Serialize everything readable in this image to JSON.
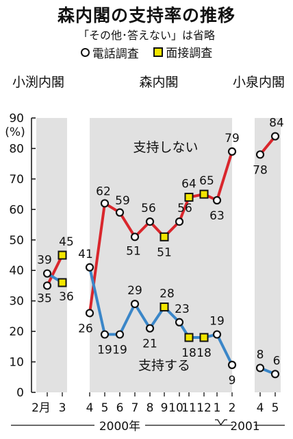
{
  "title": "森内閣の支持率の推移",
  "subtitle": "「その他･答えない」は省略",
  "legend": {
    "phone": "電話調査",
    "face": "面接調査"
  },
  "colors": {
    "support_not": "#d9262c",
    "support": "#3a86c8",
    "band": "#e1e1e1",
    "face_marker": "#f3e600"
  },
  "chart_data": {
    "type": "line",
    "title": "森内閣の支持率の推移",
    "subtitle": "「その他･答えない」は省略",
    "ylabel": "(%)",
    "ylim": [
      0,
      90
    ],
    "yticks": [
      0,
      10,
      20,
      30,
      40,
      50,
      60,
      70,
      80,
      90
    ],
    "eras": [
      {
        "label": "小渕内閣",
        "months": [
          0,
          1
        ]
      },
      {
        "label": "森内閣",
        "months": [
          2,
          14
        ]
      },
      {
        "label": "小泉内閣",
        "months": [
          15,
          16
        ]
      }
    ],
    "months": [
      "2月",
      "3",
      "4",
      "5",
      "6",
      "7",
      "8",
      "9",
      "10",
      "11",
      "12",
      "1",
      "2",
      "4",
      "5"
    ],
    "years": [
      "2000年",
      "2001"
    ],
    "series": [
      {
        "name": "支持しない",
        "segments": [
          [
            {
              "m": 0,
              "v": 35,
              "t": "phone"
            },
            {
              "m": 1,
              "v": 45,
              "t": "face"
            }
          ],
          [
            {
              "m": 2,
              "v": 26,
              "t": "phone"
            },
            {
              "m": 3,
              "v": 62,
              "t": "phone"
            },
            {
              "m": 4,
              "v": 59,
              "t": "phone"
            },
            {
              "m": 5,
              "v": 51,
              "t": "phone"
            },
            {
              "m": 6,
              "v": 56,
              "t": "phone"
            },
            {
              "m": 7,
              "v": 51,
              "t": "face"
            },
            {
              "m": 8,
              "v": 56,
              "t": "phone"
            },
            {
              "m": 9,
              "v": 64,
              "t": "face"
            },
            {
              "m": 10,
              "v": 65,
              "t": "face"
            },
            {
              "m": 11,
              "v": 63,
              "t": "phone"
            },
            {
              "m": 12,
              "v": 79,
              "t": "phone"
            }
          ],
          [
            {
              "m": 13,
              "v": 78,
              "t": "phone"
            },
            {
              "m": 14,
              "v": 84,
              "t": "phone"
            }
          ]
        ]
      },
      {
        "name": "支持する",
        "segments": [
          [
            {
              "m": 0,
              "v": 39,
              "t": "phone"
            },
            {
              "m": 1,
              "v": 36,
              "t": "face"
            }
          ],
          [
            {
              "m": 2,
              "v": 41,
              "t": "phone"
            },
            {
              "m": 3,
              "v": 19,
              "t": "phone"
            },
            {
              "m": 4,
              "v": 19,
              "t": "phone"
            },
            {
              "m": 5,
              "v": 29,
              "t": "phone"
            },
            {
              "m": 6,
              "v": 21,
              "t": "phone"
            },
            {
              "m": 7,
              "v": 28,
              "t": "face"
            },
            {
              "m": 8,
              "v": 23,
              "t": "phone"
            },
            {
              "m": 9,
              "v": 18,
              "t": "face"
            },
            {
              "m": 10,
              "v": 18,
              "t": "face"
            },
            {
              "m": 11,
              "v": 19,
              "t": "phone"
            },
            {
              "m": 12,
              "v": 9,
              "t": "phone"
            }
          ],
          [
            {
              "m": 13,
              "v": 8,
              "t": "phone"
            },
            {
              "m": 14,
              "v": 6,
              "t": "phone"
            }
          ]
        ]
      }
    ]
  }
}
